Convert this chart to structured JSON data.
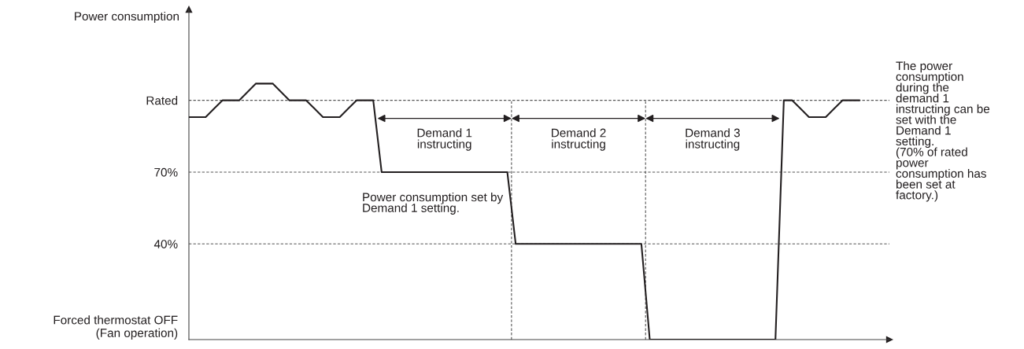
{
  "chart_data": {
    "type": "line",
    "ylabel": "Power consumption",
    "categories": [
      null,
      null,
      null,
      null,
      null,
      null,
      null,
      null,
      null,
      null,
      null,
      null,
      null,
      null,
      null,
      null,
      null,
      null,
      null,
      null,
      null,
      null,
      null,
      null,
      null,
      null,
      null,
      null,
      null,
      null,
      null,
      null,
      null,
      null,
      null,
      null,
      null,
      null,
      null,
      null,
      null,
      null,
      null,
      null,
      null,
      null,
      null,
      null,
      null,
      null,
      null,
      null,
      null,
      null,
      null,
      null,
      null,
      null,
      null,
      null,
      null,
      null,
      null,
      null,
      null,
      null,
      null,
      null,
      null,
      null,
      null,
      null,
      null,
      null,
      null,
      null,
      null,
      null,
      null,
      null,
      null
    ],
    "series": [
      {
        "color": "#231f20",
        "values": [
          93,
          93,
          93,
          96.5,
          100,
          100,
          100,
          103.5,
          107,
          107,
          107,
          103.5,
          100,
          100,
          100,
          96.5,
          93,
          93,
          93,
          96.5,
          100,
          100,
          100,
          70,
          70,
          70,
          70,
          70,
          70,
          70,
          70,
          70,
          70,
          70,
          70,
          70,
          70,
          70,
          70,
          40,
          40,
          40,
          40,
          40,
          40,
          40,
          40,
          40,
          40,
          40,
          40,
          40,
          40,
          40,
          40,
          0,
          0,
          0,
          0,
          0,
          0,
          0,
          0,
          0,
          0,
          0,
          0,
          0,
          0,
          0,
          0,
          100,
          100,
          96.5,
          93,
          93,
          93,
          96.5,
          100,
          100,
          100
        ]
      }
    ],
    "ylim": [
      0,
      138
    ],
    "yticks": [
      {
        "value": 0,
        "label": "Forced thermostat OFF\n(Fan operation)"
      },
      {
        "value": 40,
        "label": "40%"
      },
      {
        "value": 70,
        "label": "70%"
      },
      {
        "value": 100,
        "label": "Rated"
      }
    ],
    "tick_labels": "y",
    "grid": "y",
    "marker": "none",
    "line_style": "solid",
    "annotations": [
      "Demand 1\ninstructing",
      "Demand 2\ninstructing",
      "Demand 3\ninstructing",
      "Power consumption set by\nDemand 1 setting.",
      "The power\nconsumption\nduring the\ndemand 1\ninstructing can be\nset with the\nDemand 1\nsetting.\n(70% of rated\npower\nconsumption has\nbeen set at\nfactory.)"
    ]
  }
}
